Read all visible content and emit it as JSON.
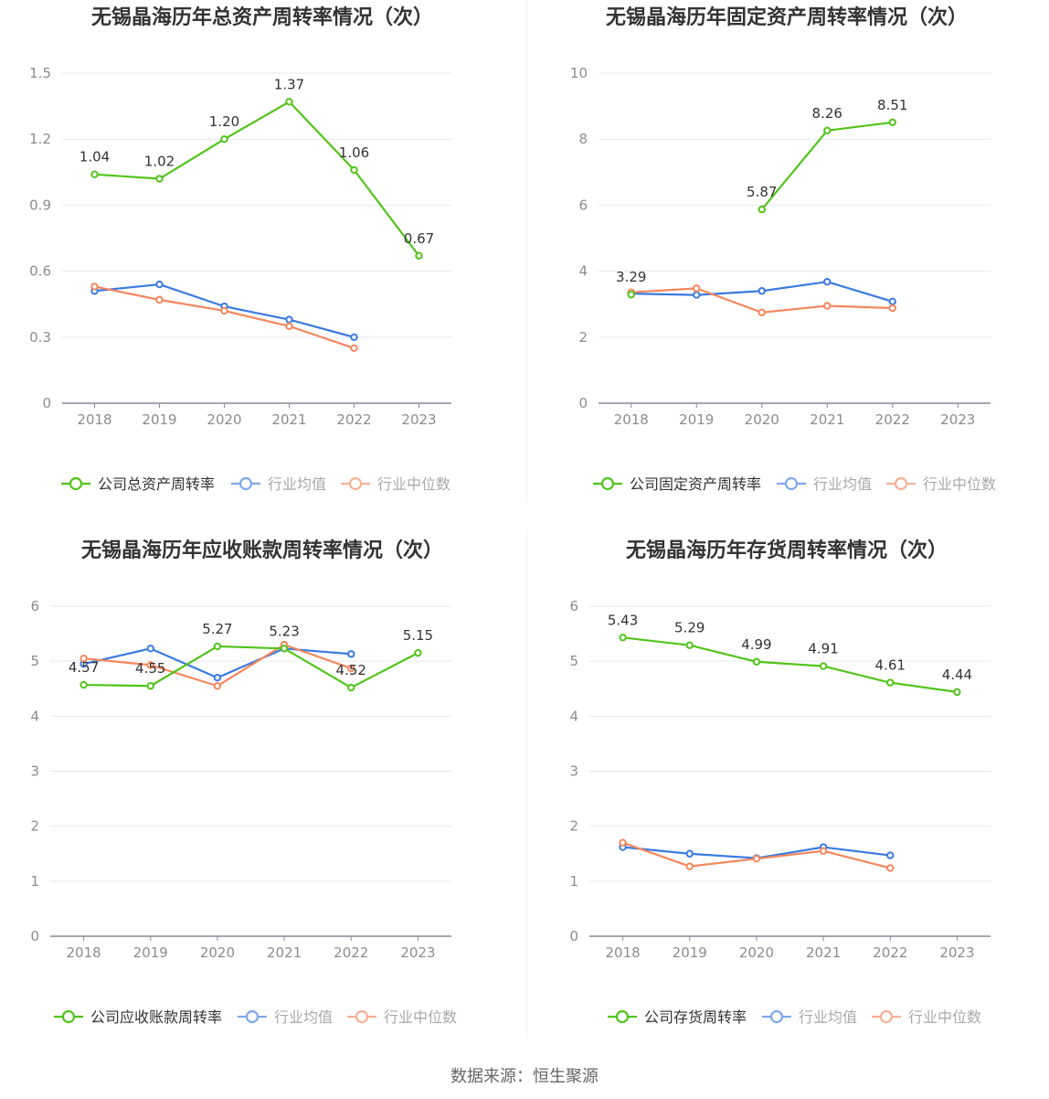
{
  "colors": {
    "company": "#52c41a",
    "average": "#3a7ae0",
    "median": "#f4875e",
    "grid": "#e6e8f0",
    "axis": "#8a8a9a",
    "tick": "#8c8c8c",
    "label": "#333333"
  },
  "legend_labels": {
    "average": "行业均值",
    "median": "行业中位数"
  },
  "source": "数据来源：恒生聚源",
  "charts": [
    {
      "type": "line",
      "title": "无锡晶海历年总资产周转率情况（次）",
      "categories": [
        "2018",
        "2019",
        "2020",
        "2021",
        "2022",
        "2023"
      ],
      "yticks": [
        "0",
        "0.3",
        "0.6",
        "0.9",
        "1.2",
        "1.5"
      ],
      "ylim": [
        0,
        1.5
      ],
      "legend_company": "公司总资产周转率",
      "series": [
        {
          "name": "公司总资产周转率",
          "role": "company",
          "values": [
            1.04,
            1.02,
            1.2,
            1.37,
            1.06,
            0.67
          ],
          "labels": [
            "1.04",
            "1.02",
            "1.20",
            "1.37",
            "1.06",
            "0.67"
          ]
        },
        {
          "name": "行业均值",
          "role": "average",
          "values": [
            0.51,
            0.54,
            0.44,
            0.38,
            0.3,
            null
          ]
        },
        {
          "name": "行业中位数",
          "role": "median",
          "values": [
            0.53,
            0.47,
            0.42,
            0.35,
            0.25,
            null
          ]
        }
      ]
    },
    {
      "type": "line",
      "title": "无锡晶海历年固定资产周转率情况（次）",
      "categories": [
        "2018",
        "2019",
        "2020",
        "2021",
        "2022",
        "2023"
      ],
      "yticks": [
        "0",
        "2",
        "4",
        "6",
        "8",
        "10"
      ],
      "ylim": [
        0,
        10
      ],
      "legend_company": "公司固定资产周转率",
      "series": [
        {
          "name": "公司固定资产周转率",
          "role": "company",
          "values": [
            3.29,
            null,
            5.87,
            8.26,
            8.51,
            null
          ],
          "labels": [
            "3.29",
            null,
            "5.87",
            "8.26",
            "8.51",
            null
          ]
        },
        {
          "name": "行业均值",
          "role": "average",
          "values": [
            3.32,
            3.28,
            3.4,
            3.68,
            3.08,
            null
          ]
        },
        {
          "name": "行业中位数",
          "role": "median",
          "values": [
            3.36,
            3.48,
            2.75,
            2.95,
            2.88,
            null
          ]
        }
      ]
    },
    {
      "type": "line",
      "title": "无锡晶海历年应收账款周转率情况（次）",
      "categories": [
        "2018",
        "2019",
        "2020",
        "2021",
        "2022",
        "2023"
      ],
      "yticks": [
        "0",
        "1",
        "2",
        "3",
        "4",
        "5",
        "6"
      ],
      "ylim": [
        0,
        6
      ],
      "legend_company": "公司应收账款周转率",
      "series": [
        {
          "name": "公司应收账款周转率",
          "role": "company",
          "values": [
            4.57,
            4.55,
            5.27,
            5.23,
            4.52,
            5.15
          ],
          "labels": [
            "4.57",
            "4.55",
            "5.27",
            "5.23",
            "4.52",
            "5.15"
          ]
        },
        {
          "name": "行业均值",
          "role": "average",
          "values": [
            4.95,
            5.23,
            4.7,
            5.23,
            5.13,
            null
          ]
        },
        {
          "name": "行业中位数",
          "role": "median",
          "values": [
            5.05,
            4.93,
            4.55,
            5.3,
            4.87,
            null
          ]
        }
      ]
    },
    {
      "type": "line",
      "title": "无锡晶海历年存货周转率情况（次）",
      "categories": [
        "2018",
        "2019",
        "2020",
        "2021",
        "2022",
        "2023"
      ],
      "yticks": [
        "0",
        "1",
        "2",
        "3",
        "4",
        "5",
        "6"
      ],
      "ylim": [
        0,
        6
      ],
      "legend_company": "公司存货周转率",
      "series": [
        {
          "name": "公司存货周转率",
          "role": "company",
          "values": [
            5.43,
            5.29,
            4.99,
            4.91,
            4.61,
            4.44
          ],
          "labels": [
            "5.43",
            "5.29",
            "4.99",
            "4.91",
            "4.61",
            "4.44"
          ]
        },
        {
          "name": "行业均值",
          "role": "average",
          "values": [
            1.62,
            1.5,
            1.42,
            1.62,
            1.47,
            null
          ]
        },
        {
          "name": "行业中位数",
          "role": "median",
          "values": [
            1.7,
            1.27,
            1.41,
            1.55,
            1.24,
            null
          ]
        }
      ]
    }
  ],
  "chart_data": [
    {
      "type": "line",
      "title": "无锡晶海历年总资产周转率情况（次）",
      "categories": [
        "2018",
        "2019",
        "2020",
        "2021",
        "2022",
        "2023"
      ],
      "ylim": [
        0,
        1.5
      ],
      "series": [
        {
          "name": "公司总资产周转率",
          "values": [
            1.04,
            1.02,
            1.2,
            1.37,
            1.06,
            0.67
          ]
        },
        {
          "name": "行业均值",
          "values": [
            0.51,
            0.54,
            0.44,
            0.38,
            0.3,
            null
          ]
        },
        {
          "name": "行业中位数",
          "values": [
            0.53,
            0.47,
            0.42,
            0.35,
            0.25,
            null
          ]
        }
      ],
      "grid": true,
      "legend": "bottom"
    },
    {
      "type": "line",
      "title": "无锡晶海历年固定资产周转率情况（次）",
      "categories": [
        "2018",
        "2019",
        "2020",
        "2021",
        "2022",
        "2023"
      ],
      "ylim": [
        0,
        10
      ],
      "series": [
        {
          "name": "公司固定资产周转率",
          "values": [
            3.29,
            null,
            5.87,
            8.26,
            8.51,
            null
          ]
        },
        {
          "name": "行业均值",
          "values": [
            3.32,
            3.28,
            3.4,
            3.68,
            3.08,
            null
          ]
        },
        {
          "name": "行业中位数",
          "values": [
            3.36,
            3.48,
            2.75,
            2.95,
            2.88,
            null
          ]
        }
      ],
      "grid": true,
      "legend": "bottom"
    },
    {
      "type": "line",
      "title": "无锡晶海历年应收账款周转率情况（次）",
      "categories": [
        "2018",
        "2019",
        "2020",
        "2021",
        "2022",
        "2023"
      ],
      "ylim": [
        0,
        6
      ],
      "series": [
        {
          "name": "公司应收账款周转率",
          "values": [
            4.57,
            4.55,
            5.27,
            5.23,
            4.52,
            5.15
          ]
        },
        {
          "name": "行业均值",
          "values": [
            4.95,
            5.23,
            4.7,
            5.23,
            5.13,
            null
          ]
        },
        {
          "name": "行业中位数",
          "values": [
            5.05,
            4.93,
            4.55,
            5.3,
            4.87,
            null
          ]
        }
      ],
      "grid": true,
      "legend": "bottom"
    },
    {
      "type": "line",
      "title": "无锡晶海历年存货周转率情况（次）",
      "categories": [
        "2018",
        "2019",
        "2020",
        "2021",
        "2022",
        "2023"
      ],
      "ylim": [
        0,
        6
      ],
      "series": [
        {
          "name": "公司存货周转率",
          "values": [
            5.43,
            5.29,
            4.99,
            4.91,
            4.61,
            4.44
          ]
        },
        {
          "name": "行业均值",
          "values": [
            1.62,
            1.5,
            1.42,
            1.62,
            1.47,
            null
          ]
        },
        {
          "name": "行业中位数",
          "values": [
            1.7,
            1.27,
            1.41,
            1.55,
            1.24,
            null
          ]
        }
      ],
      "grid": true,
      "legend": "bottom"
    }
  ]
}
